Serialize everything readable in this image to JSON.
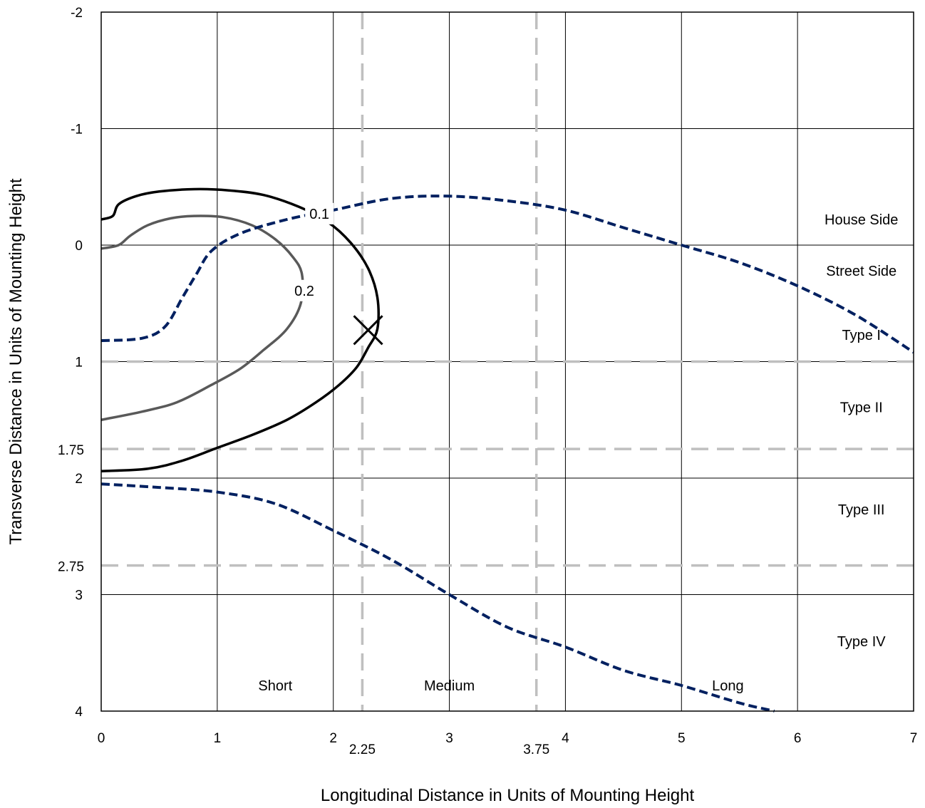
{
  "chart_data": {
    "type": "line",
    "title": "",
    "xlabel": "Longitudinal Distance in Units of Mounting Height",
    "ylabel": "Transverse Distance in Units of Mounting Height",
    "xlim": [
      0,
      7
    ],
    "ylim": [
      -2,
      4
    ],
    "y_inverted": true,
    "grid": true,
    "x_ticks": [
      "0",
      "1",
      "2",
      "3",
      "4",
      "5",
      "6",
      "7"
    ],
    "y_ticks": [
      "-2",
      "-1",
      "0",
      "1",
      "2",
      "3",
      "4"
    ],
    "extra_x_ticks": [
      {
        "value": 2.25,
        "label": "2.25"
      },
      {
        "value": 3.75,
        "label": "3.75"
      }
    ],
    "extra_y_ticks": [
      {
        "value": 1.75,
        "label": "1.75"
      },
      {
        "value": 2.75,
        "label": "2.75"
      }
    ],
    "reference_lines": {
      "vertical": [
        2.25,
        3.75
      ],
      "horizontal": [
        1,
        1.75,
        2.75
      ],
      "color": "#bfbfbf"
    },
    "region_labels": [
      {
        "text": "House Side",
        "x": 6.55,
        "y": -0.22
      },
      {
        "text": "Street Side",
        "x": 6.55,
        "y": 0.22
      },
      {
        "text": "Type I",
        "x": 6.55,
        "y": 0.77
      },
      {
        "text": "Type II",
        "x": 6.55,
        "y": 1.39
      },
      {
        "text": "Type III",
        "x": 6.55,
        "y": 2.27
      },
      {
        "text": "Type IV",
        "x": 6.55,
        "y": 3.4
      },
      {
        "text": "Short",
        "x": 1.5,
        "y": 3.78
      },
      {
        "text": "Medium",
        "x": 3.0,
        "y": 3.78
      },
      {
        "text": "Long",
        "x": 5.4,
        "y": 3.78
      }
    ],
    "contour_labels": [
      {
        "text": "0.1",
        "x": 1.88,
        "y": -0.27
      },
      {
        "text": "0.2",
        "x": 1.75,
        "y": 0.39
      }
    ],
    "max_candela_marker": {
      "x": 2.3,
      "y": 0.73
    },
    "series": [
      {
        "name": "0.1",
        "color": "#000000",
        "style": "solid",
        "points": [
          [
            0,
            -0.22
          ],
          [
            0.1,
            -0.25
          ],
          [
            0.15,
            -0.35
          ],
          [
            0.3,
            -0.42
          ],
          [
            0.5,
            -0.46
          ],
          [
            0.8,
            -0.48
          ],
          [
            1.1,
            -0.47
          ],
          [
            1.4,
            -0.43
          ],
          [
            1.7,
            -0.33
          ],
          [
            1.95,
            -0.2
          ],
          [
            2.15,
            -0.02
          ],
          [
            2.3,
            0.2
          ],
          [
            2.38,
            0.45
          ],
          [
            2.38,
            0.72
          ],
          [
            2.3,
            0.88
          ],
          [
            2.2,
            1.05
          ],
          [
            2.05,
            1.2
          ],
          [
            1.85,
            1.35
          ],
          [
            1.6,
            1.5
          ],
          [
            1.3,
            1.63
          ],
          [
            1.0,
            1.74
          ],
          [
            0.7,
            1.85
          ],
          [
            0.4,
            1.92
          ],
          [
            0,
            1.94
          ]
        ]
      },
      {
        "name": "0.2",
        "color": "#595959",
        "style": "solid",
        "points": [
          [
            0,
            0.03
          ],
          [
            0.15,
            0.0
          ],
          [
            0.25,
            -0.08
          ],
          [
            0.4,
            -0.17
          ],
          [
            0.6,
            -0.23
          ],
          [
            0.8,
            -0.25
          ],
          [
            1.05,
            -0.24
          ],
          [
            1.3,
            -0.17
          ],
          [
            1.5,
            -0.05
          ],
          [
            1.65,
            0.1
          ],
          [
            1.73,
            0.25
          ],
          [
            1.72,
            0.5
          ],
          [
            1.6,
            0.72
          ],
          [
            1.4,
            0.9
          ],
          [
            1.2,
            1.06
          ],
          [
            0.95,
            1.2
          ],
          [
            0.65,
            1.35
          ],
          [
            0.35,
            1.43
          ],
          [
            0,
            1.5
          ]
        ]
      },
      {
        "name": "",
        "color": "#002060",
        "style": "dashed",
        "points": [
          [
            0,
            0.82
          ],
          [
            0.35,
            0.8
          ],
          [
            0.55,
            0.7
          ],
          [
            0.7,
            0.45
          ],
          [
            0.82,
            0.25
          ],
          [
            0.95,
            0.05
          ],
          [
            1.2,
            -0.1
          ],
          [
            1.6,
            -0.22
          ],
          [
            2.0,
            -0.3
          ],
          [
            2.5,
            -0.4
          ],
          [
            3.0,
            -0.42
          ],
          [
            3.5,
            -0.38
          ],
          [
            4.0,
            -0.3
          ],
          [
            4.5,
            -0.15
          ],
          [
            5.0,
            0.0
          ],
          [
            5.5,
            0.15
          ],
          [
            6.0,
            0.35
          ],
          [
            6.5,
            0.6
          ],
          [
            7.0,
            0.92
          ]
        ]
      },
      {
        "name": "",
        "color": "#002060",
        "style": "dashed",
        "points": [
          [
            0,
            2.05
          ],
          [
            0.5,
            2.08
          ],
          [
            1.0,
            2.12
          ],
          [
            1.5,
            2.22
          ],
          [
            2.0,
            2.45
          ],
          [
            2.5,
            2.7
          ],
          [
            3.0,
            3.0
          ],
          [
            3.5,
            3.28
          ],
          [
            4.0,
            3.45
          ],
          [
            4.5,
            3.65
          ],
          [
            5.0,
            3.78
          ],
          [
            5.5,
            3.93
          ],
          [
            5.8,
            4.0
          ]
        ]
      }
    ]
  }
}
